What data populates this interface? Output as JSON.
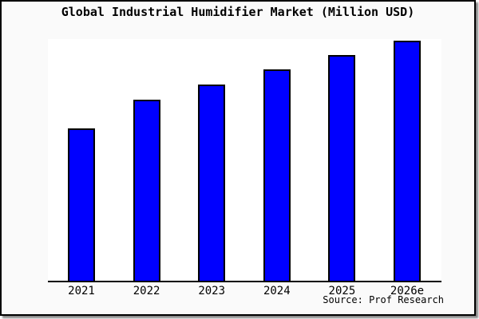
{
  "title": "Global Industrial Humidifier Market (Million USD)",
  "source_credit": "Source: Prof Research",
  "colors": {
    "bar_fill": "#0000ff",
    "bar_border": "#000000",
    "frame_background": "#fafafa",
    "plot_background": "#ffffff",
    "axis": "#000000",
    "text": "#000000"
  },
  "chart_data": {
    "type": "bar",
    "title": "Global Industrial Humidifier Market (Million USD)",
    "categories": [
      "2021",
      "2022",
      "2023",
      "2024",
      "2025",
      "2026e"
    ],
    "values": [
      191,
      227,
      246,
      265,
      283,
      301
    ],
    "values_note": "no y-axis scale shown; values are relative bar heights in pixels",
    "xlabel": "",
    "ylabel": "",
    "grid": false,
    "legend_position": "none",
    "annotations": [
      "Source: Prof Research"
    ]
  }
}
